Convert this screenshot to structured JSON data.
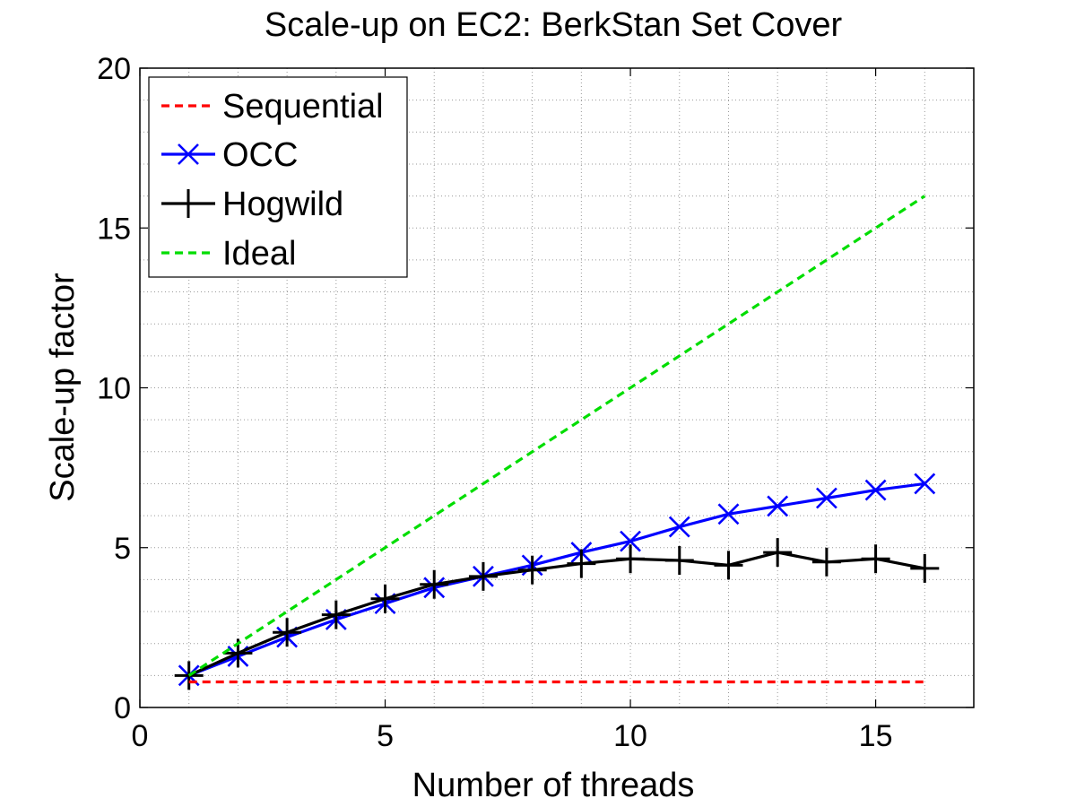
{
  "chart_data": {
    "type": "line",
    "title": "Scale-up on EC2: BerkStan Set Cover",
    "xlabel": "Number of threads",
    "ylabel": "Scale-up factor",
    "xlim": [
      0,
      17
    ],
    "ylim": [
      0,
      20
    ],
    "xticks": [
      0,
      5,
      10,
      15
    ],
    "yticks": [
      0,
      5,
      10,
      15,
      20
    ],
    "grid": true,
    "legend_position": "top-left",
    "series": [
      {
        "name": "Sequential",
        "color": "#ff0000",
        "line_style": "dashed",
        "marker": "none",
        "x": [
          1,
          16
        ],
        "y": [
          0.8,
          0.8
        ]
      },
      {
        "name": "OCC",
        "color": "#0000ff",
        "line_style": "solid",
        "marker": "x",
        "x": [
          1,
          2,
          3,
          4,
          5,
          6,
          7,
          8,
          9,
          10,
          11,
          12,
          13,
          14,
          15,
          16
        ],
        "y": [
          1.0,
          1.6,
          2.2,
          2.75,
          3.25,
          3.75,
          4.1,
          4.45,
          4.85,
          5.2,
          5.65,
          6.05,
          6.3,
          6.55,
          6.8,
          7.0
        ]
      },
      {
        "name": "Hogwild",
        "color": "#000000",
        "line_style": "solid",
        "marker": "+",
        "x": [
          1,
          2,
          3,
          4,
          5,
          6,
          7,
          8,
          9,
          10,
          11,
          12,
          13,
          14,
          15,
          16
        ],
        "y": [
          1.0,
          1.7,
          2.35,
          2.9,
          3.4,
          3.85,
          4.1,
          4.3,
          4.5,
          4.65,
          4.6,
          4.45,
          4.85,
          4.55,
          4.65,
          4.35
        ]
      },
      {
        "name": "Ideal",
        "color": "#00dd00",
        "line_style": "dashed",
        "marker": "none",
        "x": [
          1,
          16
        ],
        "y": [
          1,
          16
        ]
      }
    ]
  }
}
